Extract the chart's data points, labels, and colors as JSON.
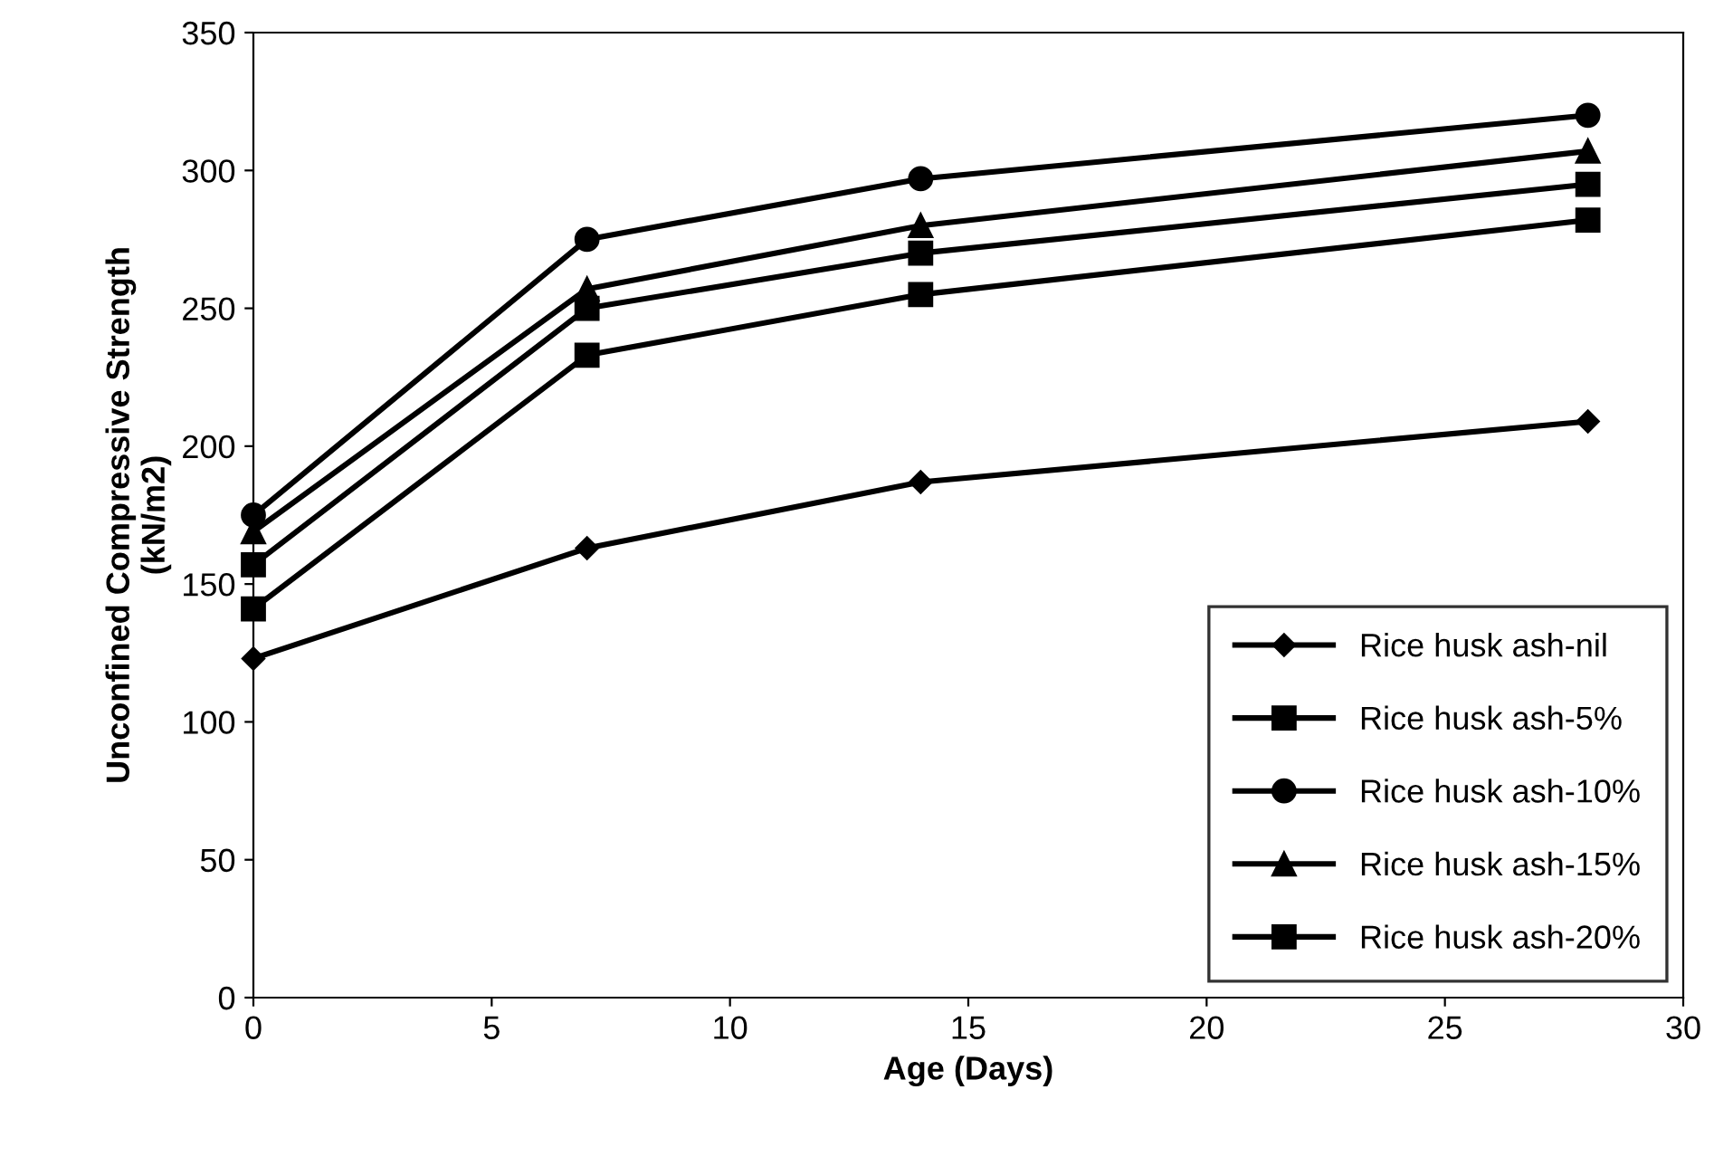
{
  "chart_data": {
    "type": "line",
    "xlabel": "Age (Days)",
    "ylabel": "Unconfined Compressive Strength\n(kN/m2)",
    "x": [
      0,
      7,
      14,
      28
    ],
    "series": [
      {
        "name": "Rice husk ash-nil",
        "color": "#000000",
        "marker": "diamond",
        "values": [
          123,
          163,
          187,
          209
        ]
      },
      {
        "name": "Rice husk ash-5%",
        "color": "#000000",
        "marker": "square",
        "values": [
          141,
          233,
          255,
          282
        ]
      },
      {
        "name": "Rice husk ash-10%",
        "color": "#000000",
        "marker": "circle",
        "values": [
          175,
          275,
          297,
          320
        ]
      },
      {
        "name": "Rice husk ash-15%",
        "color": "#000000",
        "marker": "triangle",
        "values": [
          169,
          257,
          280,
          307
        ]
      },
      {
        "name": "Rice husk ash-20%",
        "color": "#000000",
        "marker": "square",
        "values": [
          157,
          250,
          270,
          295
        ]
      }
    ],
    "xlim": [
      0,
      30
    ],
    "xticks": [
      0,
      5,
      10,
      15,
      20,
      25,
      30
    ],
    "ylim": [
      0,
      350
    ],
    "yticks": [
      0,
      50,
      100,
      150,
      200,
      250,
      300,
      350
    ],
    "grid": false,
    "legend": "bottom right",
    "line_style": "solid"
  }
}
